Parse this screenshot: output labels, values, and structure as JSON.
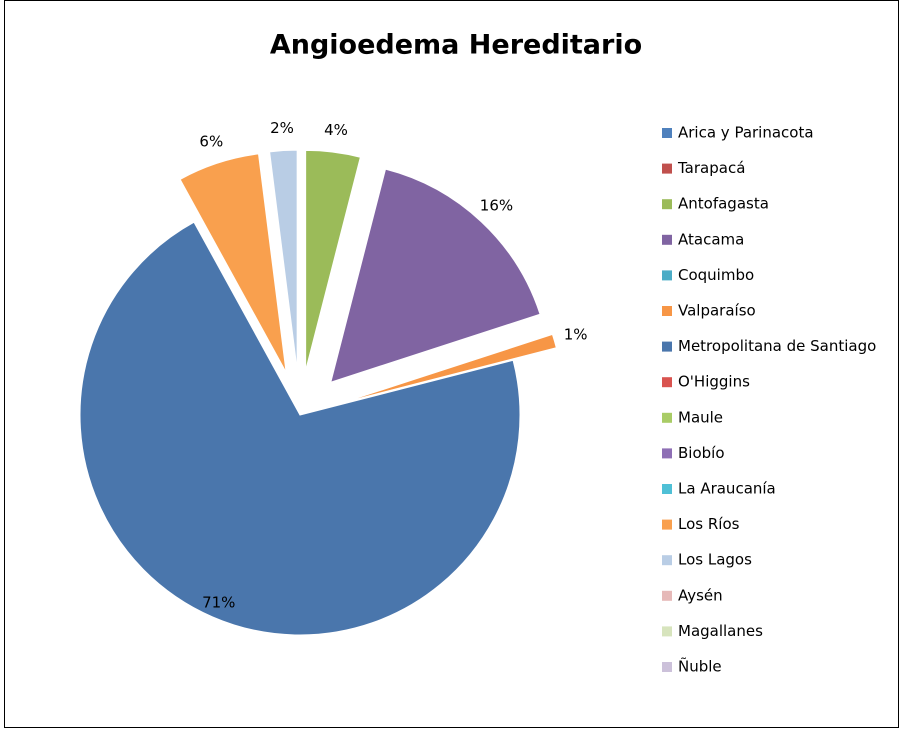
{
  "chart_data": {
    "type": "pie",
    "title": "Angioedema Hereditario",
    "categories": [
      "Arica y Parinacota",
      "Tarapacá",
      "Antofagasta",
      "Atacama",
      "Coquimbo",
      "Valparaíso",
      "Metropolitana de Santiago",
      "O'Higgins",
      "Maule",
      "Biobío",
      "La Araucanía",
      "Los Ríos",
      "Los Lagos",
      "Aysén",
      "Magallanes",
      "Ñuble"
    ],
    "values": [
      0,
      0,
      4,
      16,
      0,
      1,
      71,
      0,
      0,
      0,
      0,
      6,
      2,
      0,
      0,
      0
    ],
    "value_labels": [
      null,
      null,
      "4%",
      "16%",
      null,
      "1%",
      "71%",
      null,
      null,
      null,
      null,
      "6%",
      "2%",
      null,
      null,
      null
    ],
    "colors": [
      "#4F81BD",
      "#C0504D",
      "#9BBB59",
      "#8064A2",
      "#4BACC6",
      "#F79646",
      "#4A76AC",
      "#D9534F",
      "#A9CC66",
      "#8E6FB5",
      "#4FC0D6",
      "#F9A04E",
      "#B9CDE5",
      "#E6B9B8",
      "#D7E4BD",
      "#CCC1DA"
    ],
    "legend": "right"
  }
}
